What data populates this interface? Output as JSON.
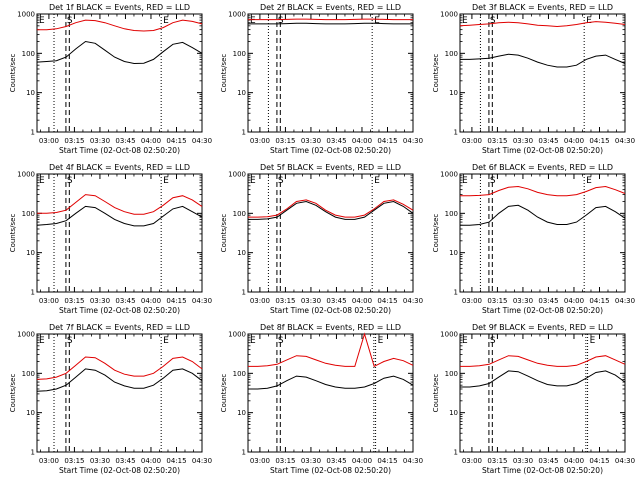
{
  "colors": {
    "events": "#000000",
    "lld": "#e00000",
    "axis": "#000000"
  },
  "chart_data": [
    {
      "type": "line",
      "title": "Det 1f BLACK = Events, RED = LLD",
      "ylabel": "Counts/sec",
      "xlabel": "Start Time (02-Oct-08 02:50:20)",
      "x_ticks": [
        "03:00",
        "03:15",
        "03:30",
        "03:45",
        "04:00",
        "04:15",
        "04:30"
      ],
      "y_ticks": [
        "1",
        "10",
        "100",
        "1000"
      ],
      "yscale": "log",
      "ylim": [
        1,
        1000
      ],
      "xlim": [
        "02:53",
        "04:30"
      ],
      "markers": {
        "E_left": "02:53",
        "E_right_dot": "03:03",
        "S1": "03:10",
        "S2": "03:12",
        "E_label": "04:06"
      },
      "marker_labels": {
        "left": "E",
        "s": "S",
        "right": "E"
      },
      "series": [
        {
          "values": [
            400,
            400,
            420,
            480,
            600,
            700,
            680,
            600,
            500,
            420,
            380,
            370,
            380,
            450,
            600,
            700,
            650,
            560
          ]
        },
        {
          "values": [
            60,
            62,
            65,
            80,
            130,
            200,
            180,
            120,
            80,
            62,
            55,
            56,
            70,
            110,
            170,
            190,
            140,
            100
          ]
        }
      ]
    },
    {
      "type": "line",
      "title": "Det 2f BLACK = Events, RED = LLD",
      "ylabel": "Counts/sec",
      "xlabel": "Start Time (02-Oct-08 02:50:20)",
      "x_ticks": [
        "03:00",
        "03:15",
        "03:30",
        "03:45",
        "04:00",
        "04:15",
        "04:30"
      ],
      "y_ticks": [
        "1",
        "10",
        "100",
        "1000"
      ],
      "yscale": "log",
      "ylim": [
        1,
        1000
      ],
      "xlim": [
        "02:53",
        "04:30"
      ],
      "markers": {
        "E_left": "02:53",
        "E_right_dot": "03:05",
        "S1": "03:10",
        "S2": "03:12",
        "E_label": "04:06"
      },
      "marker_labels": {
        "left": "E",
        "s": "S",
        "right": "E"
      },
      "series": [
        {
          "values": [
            720,
            720,
            720,
            720,
            730,
            740,
            740,
            730,
            720,
            720,
            720,
            730,
            740,
            740,
            730,
            720,
            720,
            720
          ]
        },
        {
          "values": [
            560,
            560,
            560,
            560,
            570,
            580,
            580,
            570,
            560,
            560,
            560,
            570,
            580,
            580,
            570,
            560,
            560,
            560
          ]
        }
      ]
    },
    {
      "type": "line",
      "title": "Det 3f BLACK = Events, RED = LLD",
      "ylabel": "Counts/sec",
      "xlabel": "Start Time (02-Oct-08 02:50:20)",
      "x_ticks": [
        "03:00",
        "03:15",
        "03:30",
        "03:45",
        "04:00",
        "04:15",
        "04:30"
      ],
      "y_ticks": [
        "1",
        "10",
        "100",
        "1000"
      ],
      "yscale": "log",
      "ylim": [
        1,
        1000
      ],
      "xlim": [
        "02:53",
        "04:30"
      ],
      "markers": {
        "E_left": "02:53",
        "E_right_dot": "03:05",
        "S1": "03:10",
        "S2": "03:12",
        "E_label": "04:06"
      },
      "marker_labels": {
        "left": "E",
        "s": "S",
        "right": "E"
      },
      "series": [
        {
          "values": [
            500,
            520,
            540,
            560,
            600,
            620,
            600,
            560,
            520,
            500,
            480,
            500,
            540,
            600,
            640,
            620,
            580,
            540
          ]
        },
        {
          "values": [
            70,
            70,
            72,
            75,
            85,
            95,
            90,
            75,
            60,
            50,
            45,
            45,
            50,
            70,
            85,
            90,
            70,
            55
          ]
        }
      ]
    },
    {
      "type": "line",
      "title": "Det 4f BLACK = Events, RED = LLD",
      "ylabel": "Counts/sec",
      "xlabel": "Start Time (02-Oct-08 02:50:20)",
      "x_ticks": [
        "03:00",
        "03:15",
        "03:30",
        "03:45",
        "04:00",
        "04:15",
        "04:30"
      ],
      "y_ticks": [
        "1",
        "10",
        "100",
        "1000"
      ],
      "yscale": "log",
      "ylim": [
        1,
        1000
      ],
      "xlim": [
        "02:53",
        "04:30"
      ],
      "markers": {
        "E_left": "02:53",
        "E_right_dot": "03:03",
        "S1": "03:10",
        "S2": "03:12",
        "E_label": "04:06"
      },
      "marker_labels": {
        "left": "E",
        "s": "S",
        "right": "E"
      },
      "series": [
        {
          "values": [
            100,
            100,
            105,
            120,
            190,
            300,
            280,
            200,
            140,
            110,
            95,
            95,
            110,
            160,
            250,
            280,
            220,
            150
          ]
        },
        {
          "values": [
            50,
            52,
            55,
            65,
            100,
            150,
            140,
            100,
            70,
            55,
            48,
            48,
            55,
            85,
            130,
            150,
            110,
            80
          ]
        }
      ]
    },
    {
      "type": "line",
      "title": "Det 5f BLACK = Events, RED = LLD",
      "ylabel": "Counts/sec",
      "xlabel": "Start Time (02-Oct-08 02:50:20)",
      "x_ticks": [
        "03:00",
        "03:15",
        "03:30",
        "03:45",
        "04:00",
        "04:15",
        "04:30"
      ],
      "y_ticks": [
        "1",
        "10",
        "100",
        "1000"
      ],
      "yscale": "log",
      "ylim": [
        1,
        1000
      ],
      "xlim": [
        "02:53",
        "04:30"
      ],
      "markers": {
        "E_left": "02:53",
        "E_right_dot": "03:05",
        "S1": "03:10",
        "S2": "03:12",
        "E_label": "04:06"
      },
      "marker_labels": {
        "left": "E",
        "s": "S",
        "right": "E"
      },
      "series": [
        {
          "values": [
            80,
            80,
            82,
            90,
            130,
            200,
            220,
            180,
            120,
            90,
            80,
            80,
            90,
            130,
            200,
            220,
            170,
            120
          ]
        },
        {
          "values": [
            70,
            70,
            72,
            80,
            120,
            180,
            200,
            160,
            110,
            80,
            70,
            70,
            80,
            120,
            180,
            200,
            150,
            100
          ]
        }
      ]
    },
    {
      "type": "line",
      "title": "Det 6f BLACK = Events, RED = LLD",
      "ylabel": "Counts/sec",
      "xlabel": "Start Time (02-Oct-08 02:50:20)",
      "x_ticks": [
        "03:00",
        "03:15",
        "03:30",
        "03:45",
        "04:00",
        "04:15",
        "04:30"
      ],
      "y_ticks": [
        "1",
        "10",
        "100",
        "1000"
      ],
      "yscale": "log",
      "ylim": [
        1,
        1000
      ],
      "xlim": [
        "02:53",
        "04:30"
      ],
      "markers": {
        "E_left": "02:53",
        "E_right_dot": "03:05",
        "S1": "03:10",
        "S2": "03:12",
        "E_label": "04:06"
      },
      "marker_labels": {
        "left": "E",
        "s": "S",
        "right": "E"
      },
      "series": [
        {
          "values": [
            280,
            280,
            285,
            300,
            380,
            460,
            480,
            420,
            340,
            300,
            280,
            280,
            300,
            360,
            450,
            480,
            400,
            320
          ]
        },
        {
          "values": [
            50,
            50,
            52,
            60,
            100,
            150,
            160,
            120,
            80,
            60,
            52,
            52,
            60,
            90,
            140,
            150,
            110,
            75
          ]
        }
      ]
    },
    {
      "type": "line",
      "title": "Det 7f BLACK = Events, RED = LLD",
      "ylabel": "Counts/sec",
      "xlabel": "Start Time (02-Oct-08 02:50:20)",
      "x_ticks": [
        "03:00",
        "03:15",
        "03:30",
        "03:45",
        "04:00",
        "04:15",
        "04:30"
      ],
      "y_ticks": [
        "1",
        "10",
        "100",
        "1000"
      ],
      "yscale": "log",
      "ylim": [
        1,
        1000
      ],
      "xlim": [
        "02:53",
        "04:30"
      ],
      "markers": {
        "E_left": "02:53",
        "E_right_dot": "03:03",
        "S1": "03:10",
        "S2": "03:12",
        "E_label": "04:06"
      },
      "marker_labels": {
        "left": "E",
        "s": "S",
        "right": "E"
      },
      "series": [
        {
          "values": [
            70,
            72,
            80,
            100,
            160,
            260,
            250,
            180,
            120,
            95,
            85,
            85,
            100,
            150,
            240,
            260,
            200,
            130
          ]
        },
        {
          "values": [
            35,
            36,
            40,
            50,
            80,
            130,
            120,
            90,
            60,
            48,
            42,
            42,
            50,
            75,
            120,
            130,
            100,
            65
          ]
        }
      ]
    },
    {
      "type": "line",
      "title": "Det 8f BLACK = Events, RED = LLD",
      "ylabel": "Counts/sec",
      "xlabel": "Start Time (02-Oct-08 02:50:20)",
      "x_ticks": [
        "03:00",
        "03:15",
        "03:30",
        "03:45",
        "04:00",
        "04:15",
        "04:30"
      ],
      "y_ticks": [
        "1",
        "10",
        "100",
        "1000"
      ],
      "yscale": "log",
      "ylim": [
        1,
        1000
      ],
      "xlim": [
        "02:53",
        "04:30"
      ],
      "markers": {
        "E_left": "02:53",
        "E_right_dot": "04:07",
        "S1": "03:10",
        "S2": "03:12",
        "E_label": "04:08"
      },
      "marker_labels": {
        "left": "E",
        "s": "S",
        "right": "E"
      },
      "series": [
        {
          "values": [
            150,
            150,
            155,
            170,
            220,
            280,
            270,
            220,
            180,
            160,
            150,
            150,
            1000,
            150,
            200,
            240,
            210,
            160
          ]
        },
        {
          "values": [
            40,
            40,
            42,
            48,
            65,
            85,
            80,
            65,
            52,
            45,
            42,
            42,
            45,
            55,
            75,
            85,
            70,
            50
          ]
        }
      ]
    },
    {
      "type": "line",
      "title": "Det 9f BLACK = Events, RED = LLD",
      "ylabel": "Counts/sec",
      "xlabel": "Start Time (02-Oct-08 02:50:20)",
      "x_ticks": [
        "03:00",
        "03:15",
        "03:30",
        "03:45",
        "04:00",
        "04:15",
        "04:30"
      ],
      "y_ticks": [
        "1",
        "10",
        "100",
        "1000"
      ],
      "yscale": "log",
      "ylim": [
        1,
        1000
      ],
      "xlim": [
        "02:53",
        "04:30"
      ],
      "markers": {
        "E_left": "02:53",
        "E_right_dot": "04:07",
        "S1": "03:10",
        "S2": "03:12",
        "E_label": "04:08"
      },
      "marker_labels": {
        "left": "E",
        "s": "S",
        "right": "E"
      },
      "series": [
        {
          "values": [
            150,
            150,
            155,
            170,
            220,
            280,
            270,
            220,
            180,
            160,
            150,
            150,
            160,
            200,
            260,
            280,
            220,
            170
          ]
        },
        {
          "values": [
            45,
            45,
            48,
            55,
            80,
            115,
            110,
            85,
            65,
            52,
            48,
            48,
            55,
            75,
            105,
            115,
            90,
            60
          ]
        }
      ]
    }
  ]
}
